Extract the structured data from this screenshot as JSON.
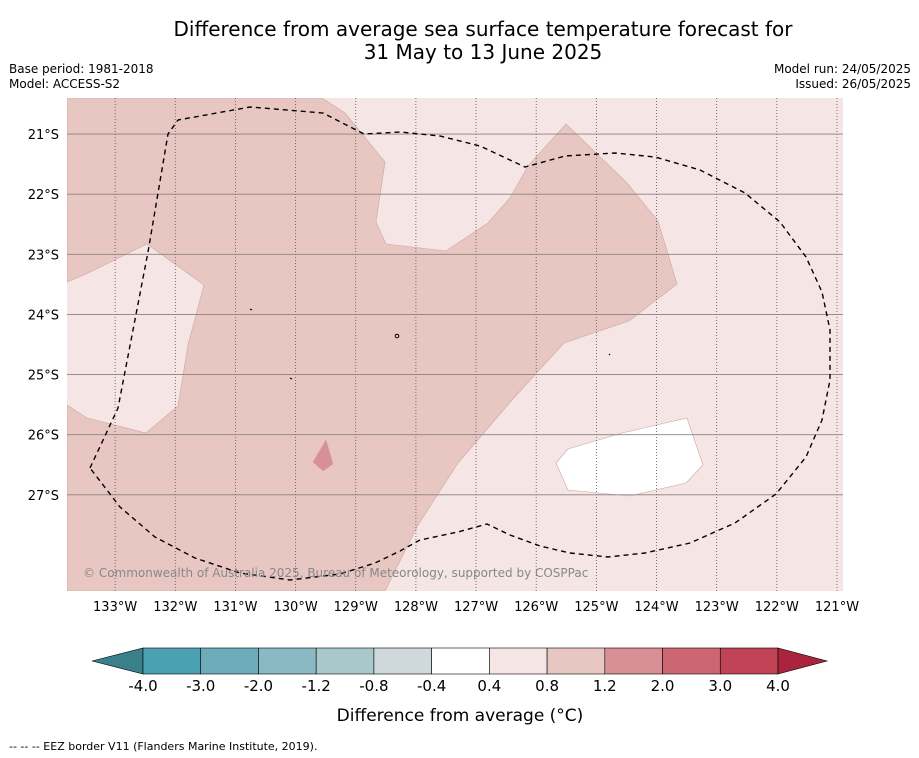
{
  "title_line1": "Difference from average sea surface temperature forecast for",
  "title_line2": "31 May to 13 June 2025",
  "base_period": "Base period: 1981-2018",
  "model": "Model: ACCESS-S2",
  "model_run": "Model run: 24/05/2025",
  "issued": "Issued: 26/05/2025",
  "copyright": "© Commonwealth of Australia 2025, Bureau of Meteorology, supported by COSPPac",
  "footnote": "-- -- -- EEZ border V11 (Flanders Marine Institute, 2019).",
  "map": {
    "lon_min": -133.8,
    "lon_max": -120.9,
    "lat_max": -20.4,
    "lat_min": -28.6,
    "lon_ticks": [
      -133,
      -132,
      -131,
      -130,
      -129,
      -128,
      -127,
      -126,
      -125,
      -124,
      -123,
      -122,
      -121
    ],
    "lon_labels": [
      "133°W",
      "132°W",
      "131°W",
      "130°W",
      "129°W",
      "128°W",
      "127°W",
      "126°W",
      "125°W",
      "124°W",
      "123°W",
      "122°W",
      "121°W"
    ],
    "lat_ticks": [
      -21,
      -22,
      -23,
      -24,
      -25,
      -26,
      -27
    ],
    "lat_labels": [
      "21°S",
      "22°S",
      "23°S",
      "24°S",
      "25°S",
      "26°S",
      "27°S"
    ]
  },
  "colorbar": {
    "label": "Difference from average (°C)",
    "tick_labels": [
      "-4.0",
      "-3.0",
      "-2.0",
      "-1.2",
      "-0.8",
      "-0.4",
      "0.4",
      "0.8",
      "1.2",
      "2.0",
      "3.0",
      "4.0"
    ],
    "colors": [
      "#4aa1b2",
      "#6dadbb",
      "#8ab8c3",
      "#a8c8cc",
      "#cfd8da",
      "#ffffff",
      "#f5e6e5",
      "#e8c7c2",
      "#d88f96",
      "#cc6670",
      "#c04455"
    ],
    "low_extend_color": "#3a808a",
    "high_extend_color": "#a9243c"
  },
  "colors": {
    "band_04_08": "#f5e6e5",
    "band_08_12": "#e8c7c2",
    "band_12_20": "#d88f96",
    "neutral": "#ffffff"
  }
}
